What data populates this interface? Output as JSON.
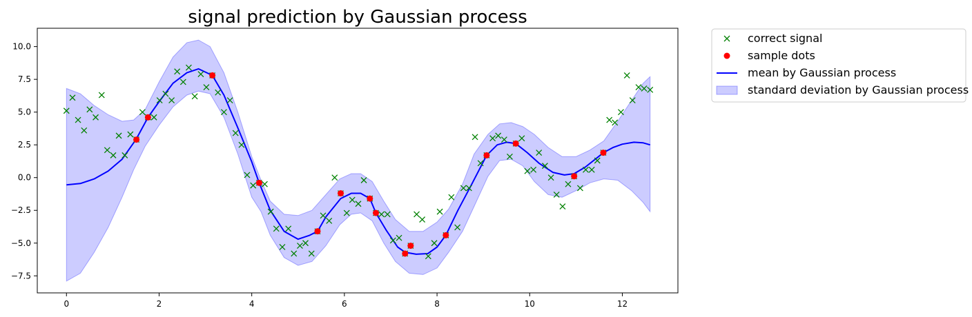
{
  "chart_data": {
    "type": "line",
    "title": "signal prediction by Gaussian process",
    "xlabel": "",
    "ylabel": "",
    "xlim": [
      -0.63,
      13.2
    ],
    "ylim": [
      -8.8,
      11.4
    ],
    "xticks": [
      0,
      2,
      4,
      6,
      8,
      10,
      12
    ],
    "yticks": [
      -7.5,
      -5.0,
      -2.5,
      0.0,
      2.5,
      5.0,
      7.5,
      10.0
    ],
    "xtick_labels": [
      "0",
      "2",
      "4",
      "6",
      "8",
      "10",
      "12"
    ],
    "ytick_labels": [
      "−7.5",
      "−5.0",
      "−2.5",
      "0.0",
      "2.5",
      "5.0",
      "7.5",
      "10.0"
    ],
    "grid": false,
    "legend_position": "outside-upper-right",
    "legend": [
      {
        "label": "correct signal",
        "kind": "x-marker",
        "color": "#008000"
      },
      {
        "label": "sample dots",
        "kind": "dot",
        "color": "#ff0000"
      },
      {
        "label": "mean by Gaussian process",
        "kind": "line",
        "color": "#0000ff"
      },
      {
        "label": "standard deviation by Gaussian process",
        "kind": "band",
        "color": "#0000ff"
      }
    ],
    "series": [
      {
        "name": "correct signal",
        "type": "scatter",
        "marker": "x",
        "color": "#008000",
        "points": [
          [
            0.0,
            5.1
          ],
          [
            0.13,
            6.1
          ],
          [
            0.25,
            4.4
          ],
          [
            0.38,
            3.6
          ],
          [
            0.5,
            5.2
          ],
          [
            0.63,
            4.6
          ],
          [
            0.76,
            6.3
          ],
          [
            0.88,
            2.1
          ],
          [
            1.01,
            1.7
          ],
          [
            1.13,
            3.2
          ],
          [
            1.26,
            1.7
          ],
          [
            1.38,
            3.3
          ],
          [
            1.51,
            2.9
          ],
          [
            1.64,
            5.0
          ],
          [
            1.76,
            4.6
          ],
          [
            1.89,
            4.6
          ],
          [
            2.01,
            5.9
          ],
          [
            2.14,
            6.4
          ],
          [
            2.27,
            5.9
          ],
          [
            2.39,
            8.1
          ],
          [
            2.52,
            7.3
          ],
          [
            2.64,
            8.4
          ],
          [
            2.77,
            6.2
          ],
          [
            2.9,
            7.9
          ],
          [
            3.02,
            6.9
          ],
          [
            3.15,
            7.8
          ],
          [
            3.27,
            6.5
          ],
          [
            3.4,
            5.0
          ],
          [
            3.53,
            5.9
          ],
          [
            3.65,
            3.4
          ],
          [
            3.78,
            2.5
          ],
          [
            3.9,
            0.2
          ],
          [
            4.03,
            -0.6
          ],
          [
            4.16,
            -0.4
          ],
          [
            4.28,
            -0.5
          ],
          [
            4.41,
            -2.6
          ],
          [
            4.53,
            -3.9
          ],
          [
            4.66,
            -5.3
          ],
          [
            4.79,
            -3.9
          ],
          [
            4.91,
            -5.8
          ],
          [
            5.04,
            -5.2
          ],
          [
            5.16,
            -5.0
          ],
          [
            5.29,
            -5.8
          ],
          [
            5.42,
            -4.1
          ],
          [
            5.54,
            -2.9
          ],
          [
            5.67,
            -3.3
          ],
          [
            5.79,
            0.0
          ],
          [
            5.92,
            -1.2
          ],
          [
            6.05,
            -2.7
          ],
          [
            6.17,
            -1.7
          ],
          [
            6.3,
            -2.0
          ],
          [
            6.42,
            -0.2
          ],
          [
            6.55,
            -1.6
          ],
          [
            6.68,
            -2.7
          ],
          [
            6.8,
            -2.8
          ],
          [
            6.93,
            -2.8
          ],
          [
            7.05,
            -4.8
          ],
          [
            7.18,
            -4.6
          ],
          [
            7.31,
            -5.8
          ],
          [
            7.43,
            -5.2
          ],
          [
            7.56,
            -2.8
          ],
          [
            7.68,
            -3.2
          ],
          [
            7.81,
            -6.0
          ],
          [
            7.94,
            -5.0
          ],
          [
            8.06,
            -2.6
          ],
          [
            8.19,
            -4.4
          ],
          [
            8.31,
            -1.5
          ],
          [
            8.44,
            -3.8
          ],
          [
            8.57,
            -0.8
          ],
          [
            8.69,
            -0.8
          ],
          [
            8.82,
            3.1
          ],
          [
            8.94,
            1.1
          ],
          [
            9.07,
            1.7
          ],
          [
            9.2,
            3.0
          ],
          [
            9.32,
            3.2
          ],
          [
            9.45,
            2.9
          ],
          [
            9.57,
            1.6
          ],
          [
            9.7,
            2.6
          ],
          [
            9.83,
            3.0
          ],
          [
            9.95,
            0.5
          ],
          [
            10.08,
            0.6
          ],
          [
            10.2,
            1.9
          ],
          [
            10.33,
            0.9
          ],
          [
            10.46,
            0.0
          ],
          [
            10.58,
            -1.3
          ],
          [
            10.71,
            -2.2
          ],
          [
            10.83,
            -0.5
          ],
          [
            10.96,
            0.1
          ],
          [
            11.09,
            -0.8
          ],
          [
            11.21,
            0.6
          ],
          [
            11.34,
            0.6
          ],
          [
            11.46,
            1.3
          ],
          [
            11.59,
            1.9
          ],
          [
            11.72,
            4.4
          ],
          [
            11.84,
            4.2
          ],
          [
            11.97,
            5.0
          ],
          [
            12.1,
            7.8
          ],
          [
            12.22,
            5.9
          ],
          [
            12.35,
            6.9
          ],
          [
            12.47,
            6.8
          ],
          [
            12.6,
            6.7
          ]
        ]
      },
      {
        "name": "sample dots",
        "type": "scatter",
        "marker": "dot",
        "color": "#ff0000",
        "points": [
          [
            1.51,
            2.9
          ],
          [
            1.76,
            4.6
          ],
          [
            3.15,
            7.8
          ],
          [
            4.16,
            -0.4
          ],
          [
            5.42,
            -4.1
          ],
          [
            5.92,
            -1.2
          ],
          [
            6.55,
            -1.6
          ],
          [
            6.68,
            -2.7
          ],
          [
            7.31,
            -5.8
          ],
          [
            7.43,
            -5.2
          ],
          [
            8.19,
            -4.4
          ],
          [
            9.07,
            1.7
          ],
          [
            9.7,
            2.6
          ],
          [
            10.96,
            0.1
          ],
          [
            11.59,
            1.9
          ]
        ]
      },
      {
        "name": "mean by Gaussian process",
        "type": "line",
        "color": "#0000ff",
        "points": [
          [
            0.0,
            -0.55
          ],
          [
            0.3,
            -0.45
          ],
          [
            0.6,
            -0.1
          ],
          [
            0.9,
            0.5
          ],
          [
            1.2,
            1.4
          ],
          [
            1.5,
            2.9
          ],
          [
            1.76,
            4.6
          ],
          [
            2.0,
            5.8
          ],
          [
            2.3,
            7.2
          ],
          [
            2.6,
            8.0
          ],
          [
            2.85,
            8.3
          ],
          [
            3.15,
            7.8
          ],
          [
            3.4,
            6.3
          ],
          [
            3.7,
            3.8
          ],
          [
            4.0,
            1.2
          ],
          [
            4.16,
            -0.4
          ],
          [
            4.4,
            -2.5
          ],
          [
            4.7,
            -4.1
          ],
          [
            5.0,
            -4.7
          ],
          [
            5.25,
            -4.4
          ],
          [
            5.42,
            -4.1
          ],
          [
            5.6,
            -3.0
          ],
          [
            5.92,
            -1.6
          ],
          [
            6.15,
            -1.2
          ],
          [
            6.35,
            -1.2
          ],
          [
            6.55,
            -1.6
          ],
          [
            6.68,
            -2.7
          ],
          [
            6.9,
            -4.0
          ],
          [
            7.15,
            -5.3
          ],
          [
            7.31,
            -5.7
          ],
          [
            7.55,
            -5.85
          ],
          [
            7.8,
            -5.8
          ],
          [
            8.0,
            -5.3
          ],
          [
            8.19,
            -4.4
          ],
          [
            8.45,
            -2.5
          ],
          [
            8.75,
            -0.5
          ],
          [
            9.07,
            1.7
          ],
          [
            9.3,
            2.5
          ],
          [
            9.5,
            2.7
          ],
          [
            9.7,
            2.6
          ],
          [
            9.95,
            1.9
          ],
          [
            10.2,
            1.1
          ],
          [
            10.5,
            0.4
          ],
          [
            10.75,
            0.2
          ],
          [
            10.96,
            0.3
          ],
          [
            11.2,
            0.8
          ],
          [
            11.45,
            1.5
          ],
          [
            11.59,
            1.9
          ],
          [
            11.8,
            2.3
          ],
          [
            12.0,
            2.55
          ],
          [
            12.25,
            2.7
          ],
          [
            12.45,
            2.65
          ],
          [
            12.6,
            2.5
          ]
        ]
      },
      {
        "name": "standard deviation by Gaussian process",
        "type": "band",
        "color": "#0000ff",
        "upper": [
          [
            0.0,
            6.8
          ],
          [
            0.3,
            6.4
          ],
          [
            0.6,
            5.5
          ],
          [
            0.9,
            4.8
          ],
          [
            1.2,
            4.3
          ],
          [
            1.45,
            4.4
          ],
          [
            1.7,
            5.2
          ],
          [
            2.0,
            7.3
          ],
          [
            2.3,
            9.2
          ],
          [
            2.6,
            10.3
          ],
          [
            2.85,
            10.5
          ],
          [
            3.1,
            10.0
          ],
          [
            3.4,
            8.0
          ],
          [
            3.7,
            5.0
          ],
          [
            4.0,
            1.6
          ],
          [
            4.2,
            -0.2
          ],
          [
            4.4,
            -1.8
          ],
          [
            4.7,
            -2.8
          ],
          [
            5.0,
            -2.9
          ],
          [
            5.3,
            -2.5
          ],
          [
            5.6,
            -1.3
          ],
          [
            5.9,
            -0.1
          ],
          [
            6.15,
            0.3
          ],
          [
            6.35,
            0.3
          ],
          [
            6.6,
            -0.3
          ],
          [
            6.85,
            -1.8
          ],
          [
            7.1,
            -3.2
          ],
          [
            7.4,
            -4.1
          ],
          [
            7.7,
            -4.1
          ],
          [
            8.0,
            -3.4
          ],
          [
            8.25,
            -2.4
          ],
          [
            8.55,
            -0.5
          ],
          [
            8.8,
            1.8
          ],
          [
            9.1,
            3.3
          ],
          [
            9.35,
            4.1
          ],
          [
            9.6,
            4.2
          ],
          [
            9.85,
            3.9
          ],
          [
            10.1,
            3.3
          ],
          [
            10.4,
            2.3
          ],
          [
            10.7,
            1.6
          ],
          [
            11.0,
            1.6
          ],
          [
            11.3,
            2.1
          ],
          [
            11.6,
            2.8
          ],
          [
            11.9,
            4.3
          ],
          [
            12.2,
            5.9
          ],
          [
            12.45,
            7.2
          ],
          [
            12.6,
            7.7
          ]
        ],
        "lower": [
          [
            0.0,
            -7.9
          ],
          [
            0.3,
            -7.3
          ],
          [
            0.6,
            -5.7
          ],
          [
            0.9,
            -3.8
          ],
          [
            1.2,
            -1.5
          ],
          [
            1.45,
            0.6
          ],
          [
            1.7,
            2.4
          ],
          [
            2.0,
            4.0
          ],
          [
            2.3,
            5.4
          ],
          [
            2.6,
            6.3
          ],
          [
            2.85,
            6.6
          ],
          [
            3.1,
            6.4
          ],
          [
            3.4,
            4.6
          ],
          [
            3.7,
            1.8
          ],
          [
            4.0,
            -1.5
          ],
          [
            4.2,
            -2.6
          ],
          [
            4.4,
            -4.4
          ],
          [
            4.7,
            -6.1
          ],
          [
            5.0,
            -6.7
          ],
          [
            5.3,
            -6.4
          ],
          [
            5.6,
            -5.2
          ],
          [
            5.9,
            -3.6
          ],
          [
            6.15,
            -2.8
          ],
          [
            6.35,
            -2.7
          ],
          [
            6.6,
            -3.3
          ],
          [
            6.85,
            -5.0
          ],
          [
            7.1,
            -6.4
          ],
          [
            7.4,
            -7.3
          ],
          [
            7.7,
            -7.4
          ],
          [
            8.0,
            -6.9
          ],
          [
            8.25,
            -5.7
          ],
          [
            8.55,
            -4.1
          ],
          [
            8.8,
            -2.2
          ],
          [
            9.1,
            0.1
          ],
          [
            9.35,
            1.3
          ],
          [
            9.6,
            1.4
          ],
          [
            9.85,
            0.9
          ],
          [
            10.1,
            -0.3
          ],
          [
            10.4,
            -1.3
          ],
          [
            10.7,
            -1.5
          ],
          [
            11.0,
            -1.0
          ],
          [
            11.3,
            -0.4
          ],
          [
            11.6,
            -0.1
          ],
          [
            11.9,
            -0.2
          ],
          [
            12.2,
            -1.0
          ],
          [
            12.45,
            -1.9
          ],
          [
            12.6,
            -2.6
          ]
        ]
      }
    ]
  }
}
